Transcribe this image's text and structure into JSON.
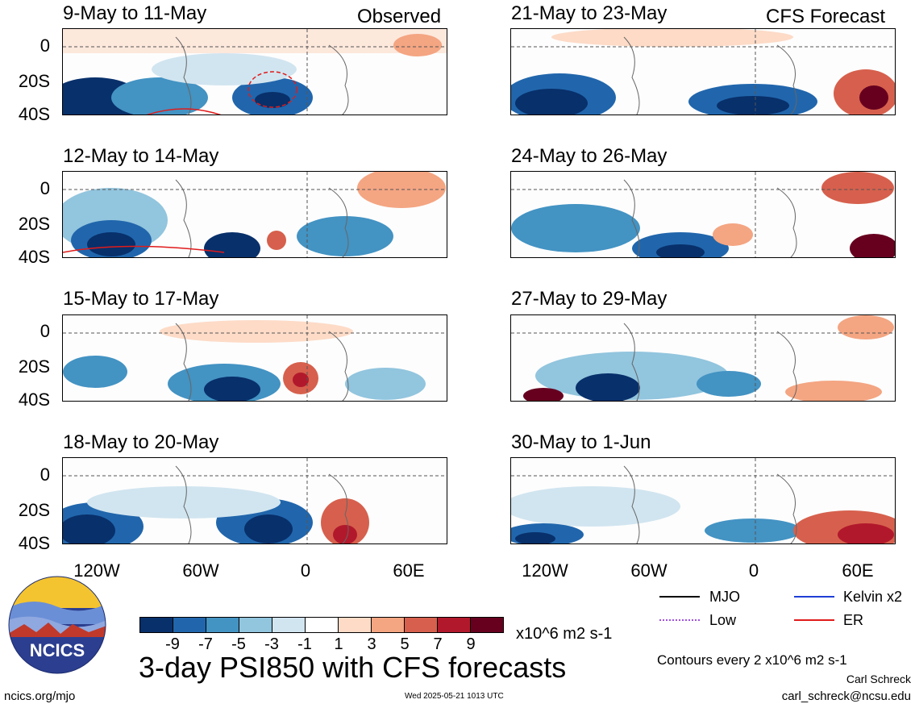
{
  "header": {
    "observed_label": "Observed",
    "forecast_label": "CFS Forecast"
  },
  "panels_left": [
    {
      "title": "9-May to 11-May"
    },
    {
      "title": "12-May to 14-May"
    },
    {
      "title": "15-May to 17-May"
    },
    {
      "title": "18-May to 20-May"
    }
  ],
  "panels_right": [
    {
      "title": "21-May to 23-May"
    },
    {
      "title": "24-May to 26-May"
    },
    {
      "title": "27-May to 29-May"
    },
    {
      "title": "30-May to 1-Jun"
    }
  ],
  "axes": {
    "y_ticks": [
      "0",
      "20S",
      "40S"
    ],
    "x_ticks": [
      "120W",
      "60W",
      "0",
      "60E"
    ]
  },
  "colorbar": {
    "colors": [
      "#08306b",
      "#2166ac",
      "#4393c3",
      "#92c5de",
      "#d1e5f0",
      "#ffffff",
      "#fddbc7",
      "#f4a582",
      "#d6604d",
      "#b2182b",
      "#67001f"
    ],
    "ticks": [
      "-9",
      "-7",
      "-5",
      "-3",
      "-1",
      "1",
      "3",
      "5",
      "7",
      "9"
    ],
    "units": "x10^6 m2 s-1"
  },
  "legend": {
    "mjo": "MJO",
    "kelvin": "Kelvin x2",
    "low": "Low",
    "er": "ER",
    "colors": {
      "mjo": "#000000",
      "kelvin": "#1f3fd6",
      "low": "#a050e0",
      "er": "#e01b1b"
    }
  },
  "main_title": "3-day PSI850 with CFS forecasts",
  "contour_note": "Contours every 2 x10^6 m2 s-1",
  "author": "Carl Schreck",
  "email": "carl_schreck@ncsu.edu",
  "url": "ncics.org/mjo",
  "timestamp": "Wed 2025-05-21 1013 UTC",
  "logo_text": "NCICS"
}
